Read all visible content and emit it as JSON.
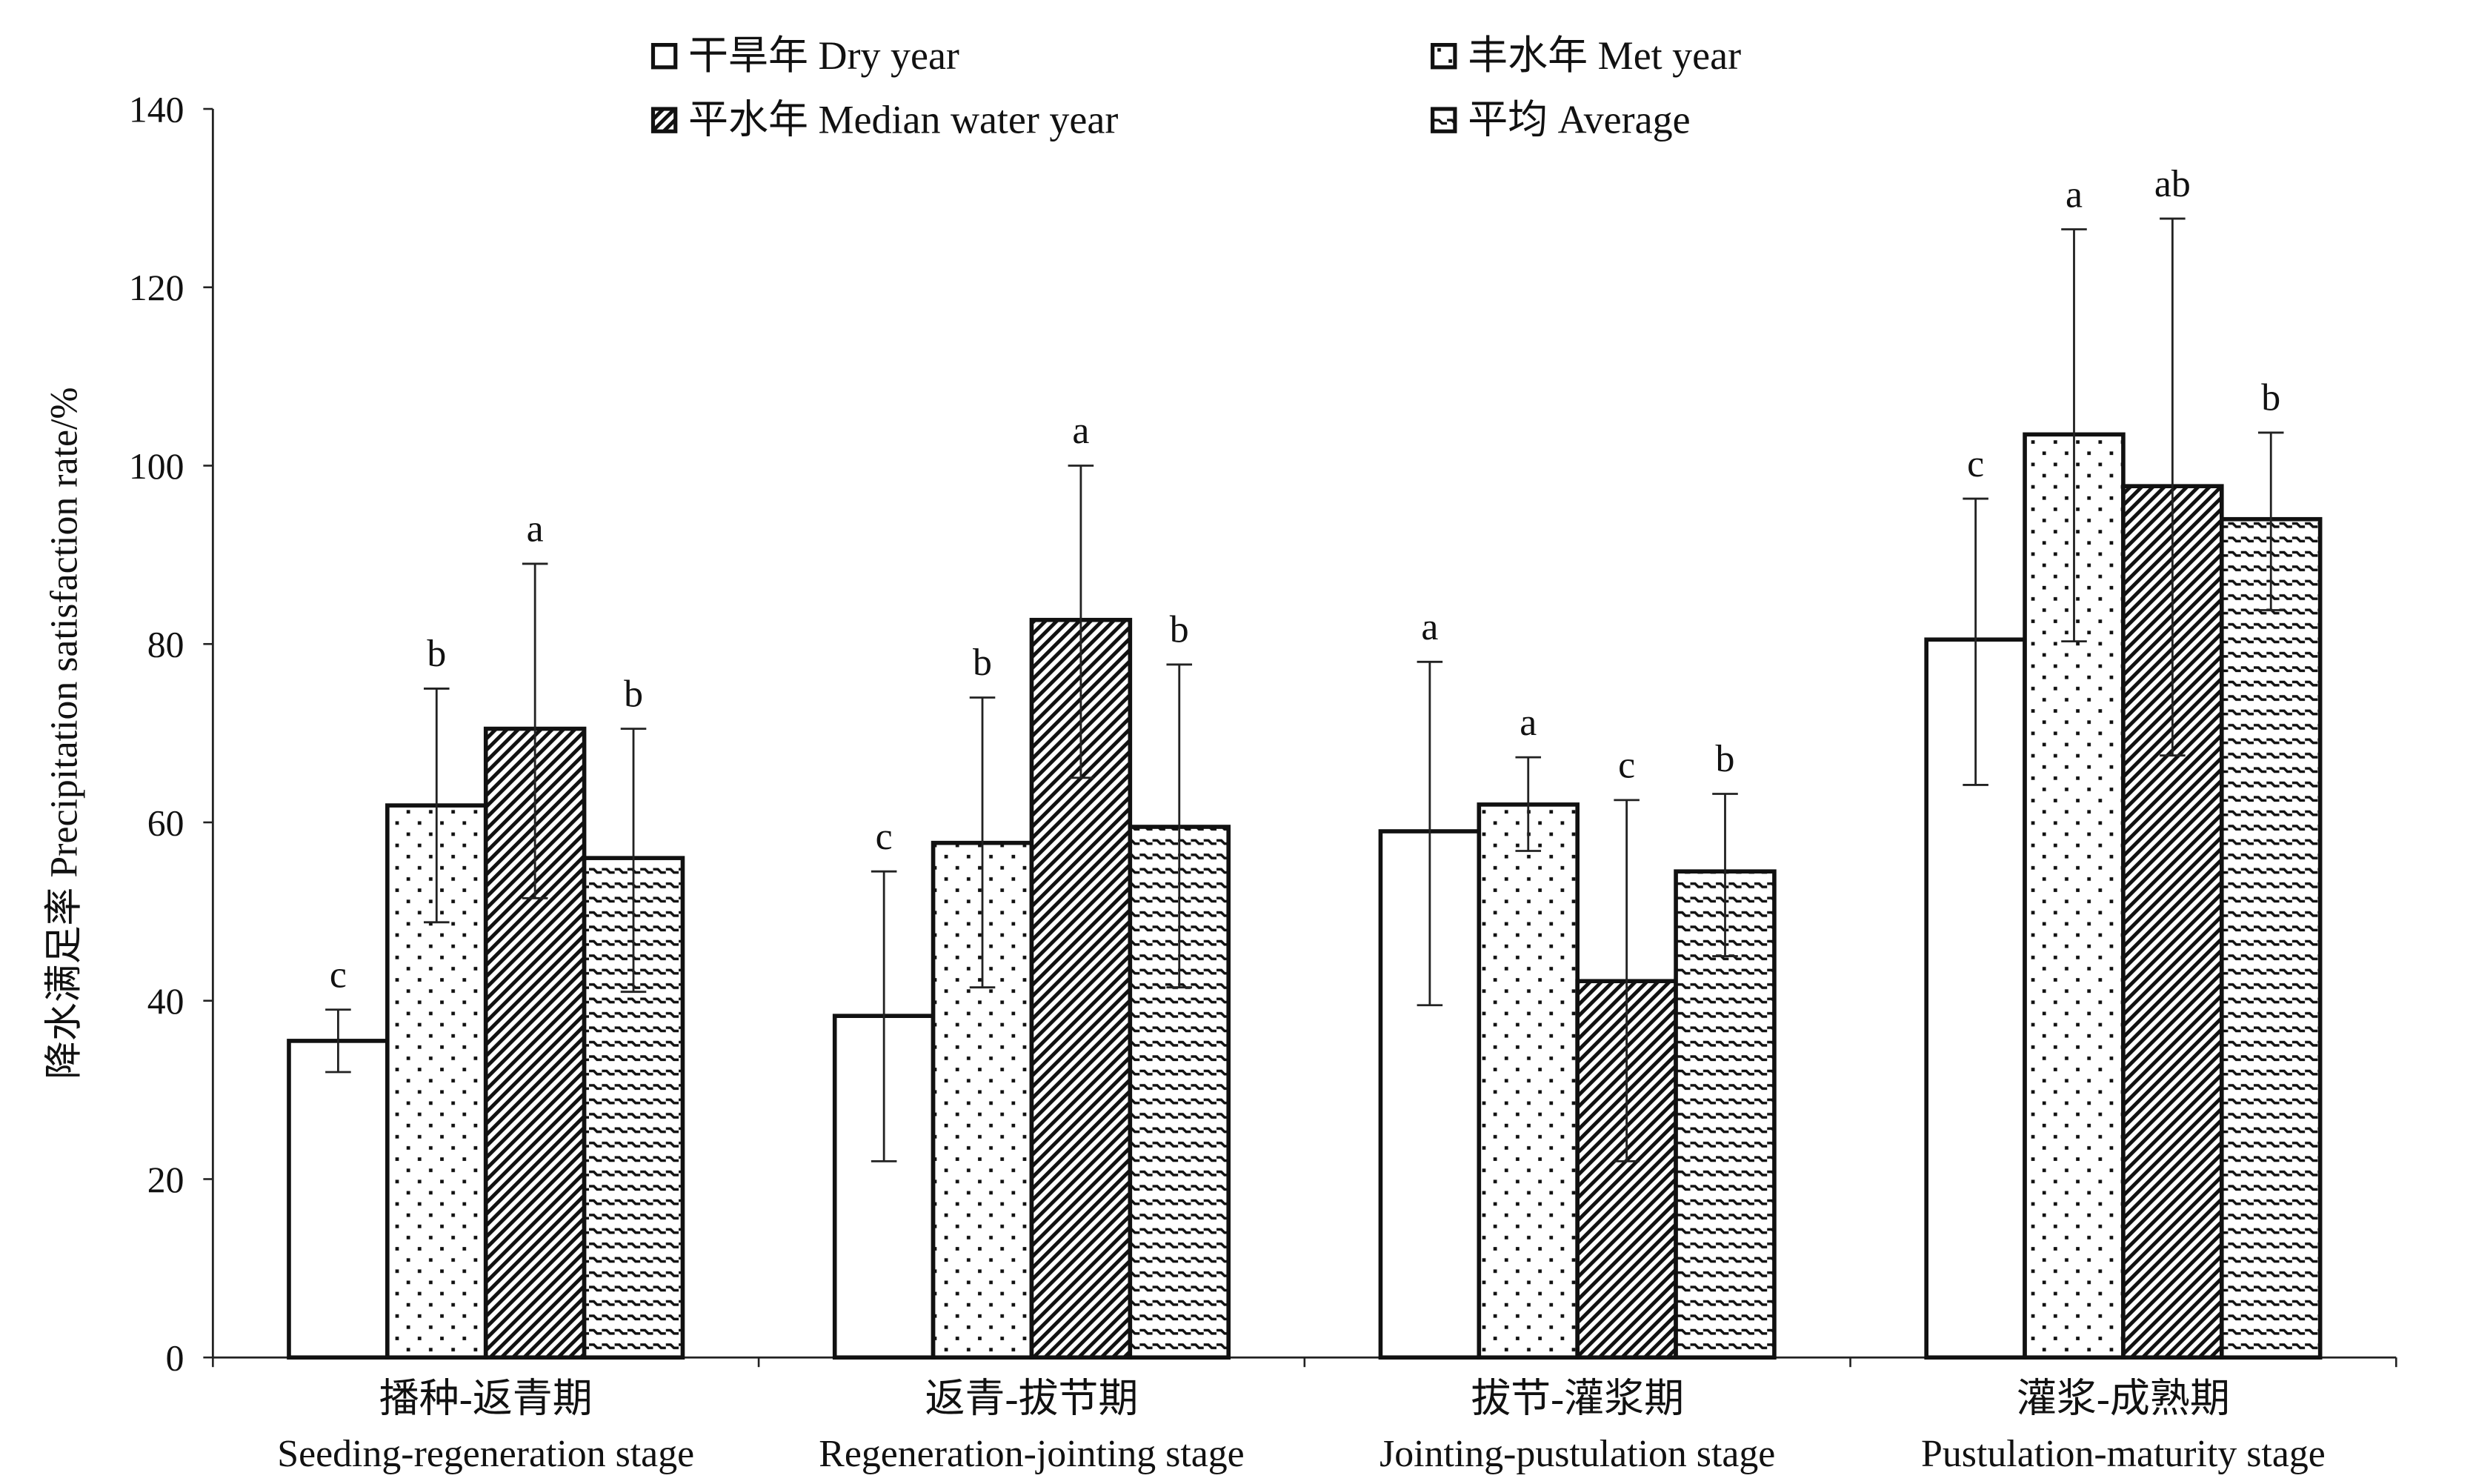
{
  "chart_data": {
    "type": "bar",
    "title": "",
    "xlabel": "",
    "ylabel": "降水满足率 Precipitation satisfaction rate/%",
    "ylim": [
      0,
      140
    ],
    "yticks": [
      0,
      20,
      40,
      60,
      80,
      100,
      120,
      140
    ],
    "grid": false,
    "legend_position": "top",
    "categories": [
      {
        "cn": "播种-返青期",
        "en": "Seeding-regeneration stage"
      },
      {
        "cn": "返青-拔节期",
        "en": "Regeneration-jointing stage"
      },
      {
        "cn": "拔节-灌浆期",
        "en": "Jointing-pustulation stage"
      },
      {
        "cn": "灌浆-成熟期",
        "en": "Pustulation-maturity stage"
      }
    ],
    "series": [
      {
        "name": "干旱年 Dry year",
        "pattern": "blank",
        "values": [
          35.5,
          38.3,
          59.0,
          80.5
        ],
        "err_low": [
          32.0,
          22.0,
          39.5,
          64.2
        ],
        "err_high": [
          39.0,
          54.5,
          78.0,
          96.3
        ],
        "letters": [
          "c",
          "c",
          "a",
          "c"
        ]
      },
      {
        "name": "丰水年 Met year",
        "pattern": "dots",
        "values": [
          61.9,
          57.7,
          62.0,
          103.5
        ],
        "err_low": [
          48.8,
          41.5,
          56.8,
          80.3
        ],
        "err_high": [
          75.0,
          74.0,
          67.3,
          126.5
        ],
        "letters": [
          "b",
          "b",
          "a",
          "a"
        ]
      },
      {
        "name": "平水年 Median water year",
        "pattern": "diagonal",
        "values": [
          70.5,
          82.7,
          42.2,
          97.7
        ],
        "err_low": [
          51.5,
          65.0,
          22.0,
          67.5
        ],
        "err_high": [
          89.0,
          100.0,
          62.5,
          127.7
        ],
        "letters": [
          "a",
          "a",
          "c",
          "ab"
        ]
      },
      {
        "name": "平均 Average",
        "pattern": "dashes",
        "values": [
          56.0,
          59.5,
          54.5,
          94.0
        ],
        "err_low": [
          41.0,
          41.5,
          45.0,
          83.8
        ],
        "err_high": [
          70.5,
          77.7,
          63.2,
          103.7
        ],
        "letters": [
          "b",
          "b",
          "b",
          "b"
        ]
      }
    ]
  }
}
